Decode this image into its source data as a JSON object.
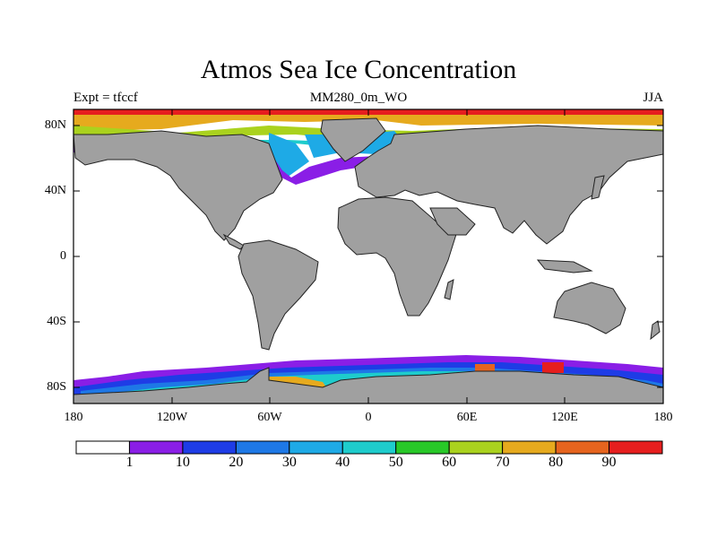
{
  "title": "Atmos Sea Ice Concentration",
  "subtitle_left": "Expt = tfccf",
  "subtitle_center": "MM280_0m_WO",
  "subtitle_right": "JJA",
  "map": {
    "projection": "cylindrical-equidistant",
    "lon_range": [
      -180,
      180
    ],
    "lat_range": [
      -90,
      90
    ],
    "land_color": "#a0a0a0",
    "ocean_color": "#ffffff",
    "lat_ticks": [
      {
        "value": 80,
        "label": "80N"
      },
      {
        "value": 40,
        "label": "40N"
      },
      {
        "value": 0,
        "label": "0"
      },
      {
        "value": -40,
        "label": "40S"
      },
      {
        "value": -80,
        "label": "80S"
      }
    ],
    "lon_ticks": [
      {
        "value": -180,
        "label": "180"
      },
      {
        "value": -120,
        "label": "120W"
      },
      {
        "value": -60,
        "label": "60W"
      },
      {
        "value": 0,
        "label": "0"
      },
      {
        "value": 60,
        "label": "60E"
      },
      {
        "value": 120,
        "label": "120E"
      },
      {
        "value": 180,
        "label": "180"
      }
    ]
  },
  "colorbar": {
    "colors": [
      "#ffffff",
      "#8a1ee6",
      "#1e3ce6",
      "#1e78e6",
      "#1eaae6",
      "#1ecccc",
      "#28c828",
      "#aad21e",
      "#e6aa1e",
      "#e6641e",
      "#e61e1e"
    ],
    "labels": [
      "1",
      "10",
      "20",
      "30",
      "40",
      "50",
      "60",
      "70",
      "80",
      "90"
    ]
  }
}
